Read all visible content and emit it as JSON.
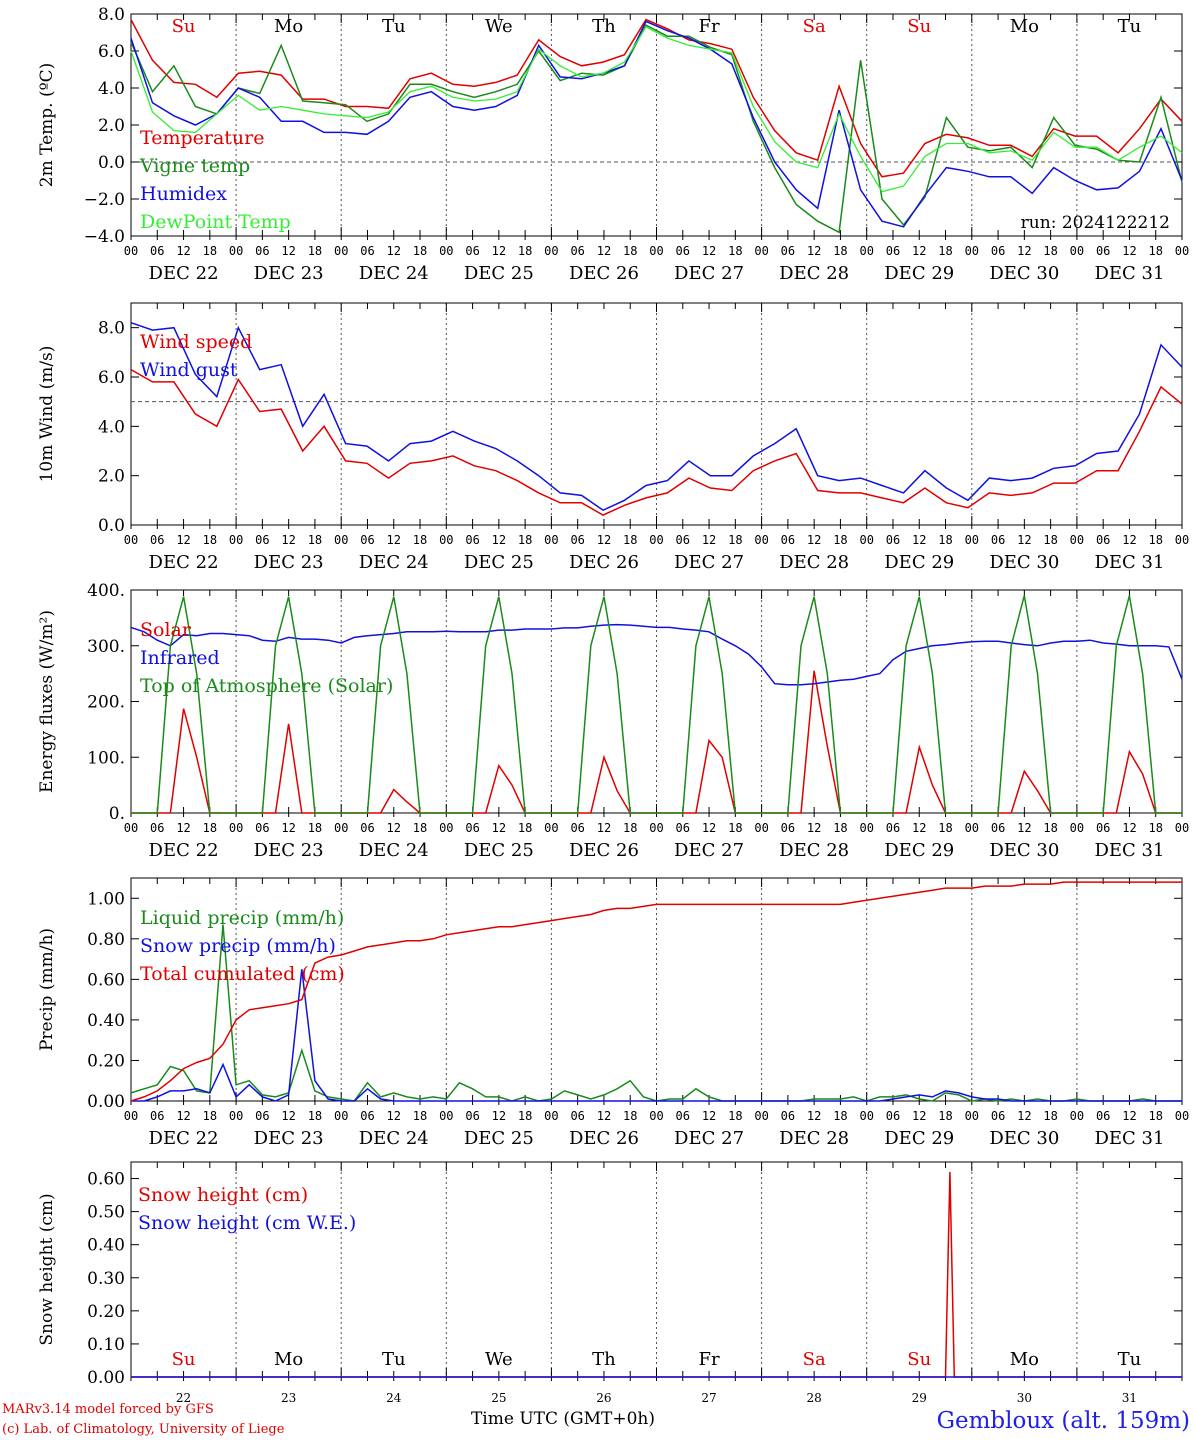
{
  "days": {
    "weekday_labels": [
      "Su",
      "Mo",
      "Tu",
      "We",
      "Th",
      "Fr",
      "Sa",
      "Su",
      "Mo",
      "Tu"
    ],
    "weekday_colors": [
      "#e00000",
      "#000000",
      "#000000",
      "#000000",
      "#000000",
      "#000000",
      "#e00000",
      "#e00000",
      "#000000",
      "#000000"
    ],
    "date_labels": [
      "DEC 22",
      "DEC 23",
      "DEC 24",
      "DEC 25",
      "DEC 26",
      "DEC 27",
      "DEC 28",
      "DEC 29",
      "DEC 30",
      "DEC 31"
    ],
    "day_numbers": [
      "22",
      "23",
      "24",
      "25",
      "26",
      "27",
      "28",
      "29",
      "30",
      "31"
    ],
    "hour_ticks": [
      "00",
      "06",
      "12",
      "18"
    ],
    "final_hour_tick": "00"
  },
  "footer": {
    "model_line": "MARv3.14 model forced by GFS",
    "credit_line": "(c) Lab. of Climatology, University of Liege",
    "xlabel": "Time UTC (GMT+0h)",
    "station": "Gembloux (alt. 159m)"
  },
  "colors": {
    "red": "#e00000",
    "green": "#1a8a1a",
    "blue": "#1010e0",
    "lightgreen": "#33ee33"
  },
  "chart_data": [
    {
      "type": "line",
      "ylabel": "2m Temp. (ºC)",
      "ylim": [
        -4,
        8
      ],
      "yticks": [
        "8.0",
        "6.0",
        "4.0",
        "2.0",
        "0.0",
        "−2.0",
        "−4.0"
      ],
      "ref_line": 0,
      "annotation": "run: 2024122212",
      "x": "hours since DEC 22 00 UTC, every 6 h, 0–240",
      "series": [
        {
          "name": "Temperature",
          "color": "red",
          "values": [
            7.7,
            5.5,
            4.3,
            4.2,
            3.5,
            4.8,
            4.9,
            4.7,
            3.4,
            3.4,
            3.0,
            3.0,
            2.9,
            4.5,
            4.8,
            4.2,
            4.1,
            4.3,
            4.7,
            6.6,
            5.7,
            5.2,
            5.4,
            5.8,
            7.7,
            7.2,
            6.6,
            6.4,
            6.1,
            3.5,
            1.7,
            0.5,
            0.1,
            4.1,
            1.0,
            -0.8,
            -0.6,
            1.0,
            1.5,
            1.3,
            0.9,
            0.9,
            0.3,
            1.8,
            1.4,
            1.4,
            0.5,
            1.8,
            3.4,
            2.2
          ]
        },
        {
          "name": "Vigne temp",
          "color": "green",
          "values": [
            6.5,
            3.8,
            5.2,
            3.0,
            2.6,
            4.0,
            3.7,
            6.3,
            3.3,
            3.2,
            3.1,
            2.2,
            2.6,
            4.2,
            4.2,
            3.8,
            3.5,
            3.8,
            4.2,
            6.0,
            4.4,
            4.8,
            4.7,
            5.2,
            7.4,
            6.8,
            6.8,
            6.2,
            5.8,
            2.2,
            -0.3,
            -2.3,
            -3.2,
            -3.8,
            5.5,
            -2.0,
            -3.4,
            -1.9,
            2.4,
            0.8,
            0.6,
            0.8,
            -0.3,
            2.4,
            0.9,
            0.7,
            0.1,
            0.0,
            3.5,
            -1.1
          ]
        },
        {
          "name": "Humidex",
          "color": "blue",
          "values": [
            6.7,
            3.2,
            2.5,
            2.0,
            2.6,
            4.0,
            3.5,
            2.2,
            2.2,
            1.6,
            1.6,
            1.5,
            2.2,
            3.5,
            3.8,
            3.0,
            2.8,
            3.0,
            3.6,
            6.3,
            4.6,
            4.5,
            4.8,
            5.2,
            7.6,
            7.1,
            6.7,
            6.1,
            5.3,
            2.4,
            0.0,
            -1.5,
            -2.5,
            2.8,
            -1.5,
            -3.2,
            -3.5,
            -1.8,
            -0.3,
            -0.5,
            -0.8,
            -0.8,
            -1.7,
            -0.3,
            -1.0,
            -1.5,
            -1.4,
            -0.5,
            1.8,
            -1.0
          ]
        },
        {
          "name": "DewPoint Temp",
          "color": "lightgreen",
          "values": [
            6.0,
            2.7,
            1.7,
            1.6,
            2.6,
            3.6,
            2.8,
            3.0,
            2.8,
            2.6,
            2.5,
            2.4,
            2.7,
            3.8,
            4.1,
            3.5,
            3.3,
            3.4,
            3.8,
            6.1,
            5.2,
            4.6,
            4.8,
            5.4,
            7.3,
            6.7,
            6.3,
            6.1,
            5.9,
            3.0,
            1.1,
            0.0,
            -0.3,
            2.6,
            0.3,
            -1.6,
            -1.3,
            0.3,
            1.0,
            1.0,
            0.5,
            0.6,
            0.1,
            1.6,
            0.8,
            0.8,
            0.1,
            0.8,
            1.4,
            0.5
          ]
        }
      ]
    },
    {
      "type": "line",
      "ylabel": "10m Wind (m/s)",
      "ylim": [
        0,
        9
      ],
      "yticks": [
        "8.0",
        "6.0",
        "4.0",
        "2.0",
        "0.0"
      ],
      "ref_line": 5,
      "x": "hours since DEC 22 00 UTC, every 6 h, 0–240",
      "series": [
        {
          "name": "Wind speed",
          "color": "red",
          "values": [
            6.3,
            5.8,
            5.8,
            4.5,
            4.0,
            5.9,
            4.6,
            4.7,
            3.0,
            4.0,
            2.6,
            2.5,
            1.9,
            2.5,
            2.6,
            2.8,
            2.4,
            2.2,
            1.8,
            1.3,
            0.9,
            0.9,
            0.4,
            0.8,
            1.1,
            1.3,
            1.9,
            1.5,
            1.4,
            2.2,
            2.6,
            2.9,
            1.4,
            1.3,
            1.3,
            1.1,
            0.9,
            1.5,
            0.9,
            0.7,
            1.3,
            1.2,
            1.3,
            1.7,
            1.7,
            2.2,
            2.2,
            3.8,
            5.6,
            4.9
          ]
        },
        {
          "name": "Wind gust",
          "color": "blue",
          "values": [
            8.2,
            7.9,
            8.0,
            6.1,
            5.2,
            8.0,
            6.3,
            6.5,
            4.0,
            5.3,
            3.3,
            3.2,
            2.6,
            3.3,
            3.4,
            3.8,
            3.4,
            3.1,
            2.6,
            2.0,
            1.3,
            1.2,
            0.6,
            1.0,
            1.6,
            1.8,
            2.6,
            2.0,
            2.0,
            2.8,
            3.3,
            3.9,
            2.0,
            1.8,
            1.9,
            1.6,
            1.3,
            2.2,
            1.5,
            1.0,
            1.9,
            1.8,
            1.9,
            2.3,
            2.4,
            2.9,
            3.0,
            4.5,
            7.3,
            6.4
          ]
        }
      ]
    },
    {
      "type": "line",
      "ylabel": "Energy fluxes (W/m²)",
      "ylim": [
        0,
        400
      ],
      "yticks": [
        "400.",
        "300.",
        "200.",
        "100.",
        "0."
      ],
      "x": "hours since DEC 22 00 UTC, every 3 h, 0–240",
      "series": [
        {
          "name": "Solar",
          "color": "red",
          "values": [
            0,
            0,
            0,
            0,
            187,
            100,
            0,
            0,
            0,
            0,
            0,
            0,
            160,
            0,
            0,
            0,
            0,
            0,
            0,
            0,
            42,
            20,
            0,
            0,
            0,
            0,
            0,
            0,
            85,
            50,
            0,
            0,
            0,
            0,
            0,
            0,
            100,
            40,
            0,
            0,
            0,
            0,
            0,
            0,
            130,
            100,
            0,
            0,
            0,
            0,
            0,
            0,
            255,
            120,
            0,
            0,
            0,
            0,
            0,
            0,
            118,
            50,
            0,
            0,
            0,
            0,
            0,
            0,
            75,
            40,
            0,
            0,
            0,
            0,
            0,
            0,
            110,
            70,
            0,
            0,
            0
          ]
        },
        {
          "name": "Infrared",
          "color": "blue",
          "values": [
            333,
            325,
            310,
            300,
            320,
            318,
            322,
            322,
            320,
            318,
            310,
            308,
            315,
            312,
            312,
            310,
            305,
            315,
            318,
            320,
            322,
            325,
            325,
            325,
            326,
            325,
            325,
            325,
            328,
            328,
            330,
            330,
            330,
            332,
            332,
            335,
            337,
            338,
            337,
            335,
            333,
            333,
            330,
            328,
            325,
            312,
            300,
            285,
            262,
            232,
            230,
            230,
            232,
            235,
            238,
            240,
            245,
            250,
            275,
            290,
            295,
            300,
            302,
            305,
            307,
            308,
            308,
            305,
            302,
            300,
            305,
            308,
            308,
            310,
            305,
            303,
            300,
            300,
            300,
            298,
            240
          ]
        },
        {
          "name": "Top of Atmosphere (Solar)",
          "color": "green",
          "values": [
            0,
            0,
            0,
            300,
            388,
            250,
            0,
            0,
            0,
            0,
            0,
            300,
            388,
            250,
            0,
            0,
            0,
            0,
            0,
            300,
            388,
            250,
            0,
            0,
            0,
            0,
            0,
            300,
            388,
            250,
            0,
            0,
            0,
            0,
            0,
            300,
            388,
            250,
            0,
            0,
            0,
            0,
            0,
            300,
            388,
            250,
            0,
            0,
            0,
            0,
            0,
            300,
            388,
            250,
            0,
            0,
            0,
            0,
            0,
            300,
            388,
            250,
            0,
            0,
            0,
            0,
            0,
            300,
            390,
            250,
            0,
            0,
            0,
            0,
            0,
            300,
            390,
            250,
            0,
            0,
            0
          ]
        }
      ]
    },
    {
      "type": "line",
      "ylabel": "Precip (mm/h)",
      "ylim": [
        0,
        1.1
      ],
      "yticks": [
        "1.00",
        "0.80",
        "0.60",
        "0.40",
        "0.20",
        "0.00"
      ],
      "x": "hours since DEC 22 00 UTC, every 3 h, 0–240",
      "series": [
        {
          "name": "Liquid precip (mm/h)",
          "color": "green",
          "values": [
            0.04,
            0.06,
            0.08,
            0.17,
            0.15,
            0.05,
            0.04,
            0.87,
            0.08,
            0.1,
            0.03,
            0.02,
            0.04,
            0.25,
            0.05,
            0.02,
            0.01,
            0.0,
            0.09,
            0.02,
            0.04,
            0.02,
            0.01,
            0.02,
            0.01,
            0.09,
            0.06,
            0.02,
            0.02,
            0.0,
            0.02,
            0.0,
            0.01,
            0.05,
            0.03,
            0.01,
            0.03,
            0.06,
            0.1,
            0.02,
            0.0,
            0.01,
            0.01,
            0.06,
            0.02,
            0.0,
            0.0,
            0.0,
            0.0,
            0.0,
            0.0,
            0.0,
            0.01,
            0.01,
            0.01,
            0.02,
            0.0,
            0.02,
            0.02,
            0.03,
            0.01,
            0.0,
            0.04,
            0.03,
            0.0,
            0.01,
            0.0,
            0.01,
            0.0,
            0.01,
            0.0,
            0.0,
            0.01,
            0.0,
            0.0,
            0.0,
            0.0,
            0.01,
            0.0,
            0.0,
            0.0
          ]
        },
        {
          "name": "Snow precip (mm/h)",
          "color": "blue",
          "values": [
            0.0,
            0.0,
            0.02,
            0.05,
            0.05,
            0.06,
            0.04,
            0.18,
            0.02,
            0.08,
            0.02,
            0.0,
            0.03,
            0.65,
            0.1,
            0.01,
            0.0,
            0.0,
            0.06,
            0.01,
            0.0,
            0.0,
            0.0,
            0.0,
            0.0,
            0.0,
            0.0,
            0.0,
            0.0,
            0.0,
            0.0,
            0.0,
            0.0,
            0.0,
            0.0,
            0.0,
            0.0,
            0.0,
            0.0,
            0.0,
            0.0,
            0.0,
            0.0,
            0.0,
            0.0,
            0.0,
            0.0,
            0.0,
            0.0,
            0.0,
            0.0,
            0.0,
            0.0,
            0.0,
            0.0,
            0.0,
            0.0,
            0.0,
            0.01,
            0.02,
            0.03,
            0.02,
            0.05,
            0.04,
            0.02,
            0.01,
            0.01,
            0.0,
            0.0,
            0.0,
            0.0,
            0.0,
            0.0,
            0.0,
            0.0,
            0.0,
            0.0,
            0.0,
            0.0,
            0.0,
            0.0
          ]
        },
        {
          "name": "Total cumulated (cm)",
          "color": "red",
          "values": [
            0.0,
            0.02,
            0.05,
            0.1,
            0.16,
            0.19,
            0.21,
            0.28,
            0.4,
            0.45,
            0.46,
            0.47,
            0.48,
            0.5,
            0.68,
            0.71,
            0.72,
            0.74,
            0.76,
            0.77,
            0.78,
            0.79,
            0.79,
            0.8,
            0.82,
            0.83,
            0.84,
            0.85,
            0.86,
            0.86,
            0.87,
            0.88,
            0.89,
            0.9,
            0.91,
            0.92,
            0.94,
            0.95,
            0.95,
            0.96,
            0.97,
            0.97,
            0.97,
            0.97,
            0.97,
            0.97,
            0.97,
            0.97,
            0.97,
            0.97,
            0.97,
            0.97,
            0.97,
            0.97,
            0.97,
            0.98,
            0.99,
            1.0,
            1.01,
            1.02,
            1.03,
            1.04,
            1.05,
            1.05,
            1.05,
            1.06,
            1.06,
            1.06,
            1.07,
            1.07,
            1.07,
            1.08,
            1.08,
            1.08,
            1.08,
            1.08,
            1.08,
            1.08,
            1.08,
            1.08,
            1.08
          ]
        }
      ]
    },
    {
      "type": "line",
      "ylabel": "Snow height (cm)",
      "ylim": [
        0,
        0.65
      ],
      "yticks": [
        "0.60",
        "0.50",
        "0.40",
        "0.30",
        "0.20",
        "0.10",
        "0.00"
      ],
      "x": "hours since DEC 22 00 UTC, 0–240",
      "series": [
        {
          "name": "Snow height (cm)",
          "color": "red",
          "x": [
            0,
            186,
            187,
            188,
            240
          ],
          "values": [
            0,
            0,
            0.62,
            0,
            0
          ]
        },
        {
          "name": "Snow height (cm W.E.)",
          "color": "blue",
          "x": [
            0,
            240
          ],
          "values": [
            0,
            0
          ]
        }
      ]
    }
  ]
}
